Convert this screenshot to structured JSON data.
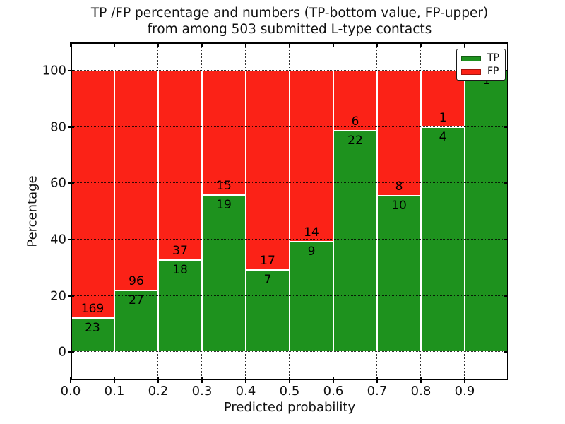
{
  "title": {
    "line1": "TP /FP percentage and numbers (TP-bottom value, FP-upper)",
    "line2": "from among 503 submitted L-type contacts"
  },
  "chart_data": {
    "type": "bar",
    "stacking": "percentage-stacked",
    "title": "TP /FP percentage and numbers (TP-bottom value, FP-upper)\nfrom among 503 submitted L-type contacts",
    "xlabel": "Predicted probability",
    "ylabel": "Percentage",
    "xlim": [
      0.0,
      1.0
    ],
    "ylim": [
      -10,
      110
    ],
    "bin_edges": [
      0.0,
      0.1,
      0.2,
      0.3,
      0.4,
      0.5,
      0.6,
      0.7,
      0.8,
      0.9,
      1.0
    ],
    "xtick_values": [
      0.0,
      0.1,
      0.2,
      0.3,
      0.4,
      0.5,
      0.6,
      0.7,
      0.8,
      0.9
    ],
    "xtick_labels": [
      "0.0",
      "0.1",
      "0.2",
      "0.3",
      "0.4",
      "0.5",
      "0.6",
      "0.7",
      "0.8",
      "0.9"
    ],
    "ytick_values": [
      0,
      20,
      40,
      60,
      80,
      100
    ],
    "ytick_labels": [
      "0",
      "20",
      "40",
      "60",
      "80",
      "100"
    ],
    "grid": "dotted",
    "total_submitted": 503,
    "series": [
      {
        "name": "TP",
        "color": "#1e921e",
        "values": [
          23,
          27,
          18,
          19,
          7,
          9,
          22,
          10,
          4,
          1
        ]
      },
      {
        "name": "FP",
        "color": "#fb2217",
        "values": [
          169,
          96,
          37,
          15,
          17,
          14,
          6,
          8,
          1,
          0
        ]
      }
    ],
    "tp_percent_heights": [
      12.0,
      22.0,
      32.7,
      55.9,
      29.2,
      39.1,
      78.6,
      55.6,
      80.0,
      100.0
    ],
    "legend": {
      "position": "upper-right",
      "entries": [
        {
          "label": "TP",
          "color": "#1e921e"
        },
        {
          "label": "FP",
          "color": "#fb2217"
        }
      ]
    },
    "colors": {
      "tp": "#1e921e",
      "fp": "#fb2217",
      "bar_edge": "#ffffff",
      "axis": "#000000",
      "grid": "#1a1a1a",
      "background": "#ffffff"
    }
  }
}
